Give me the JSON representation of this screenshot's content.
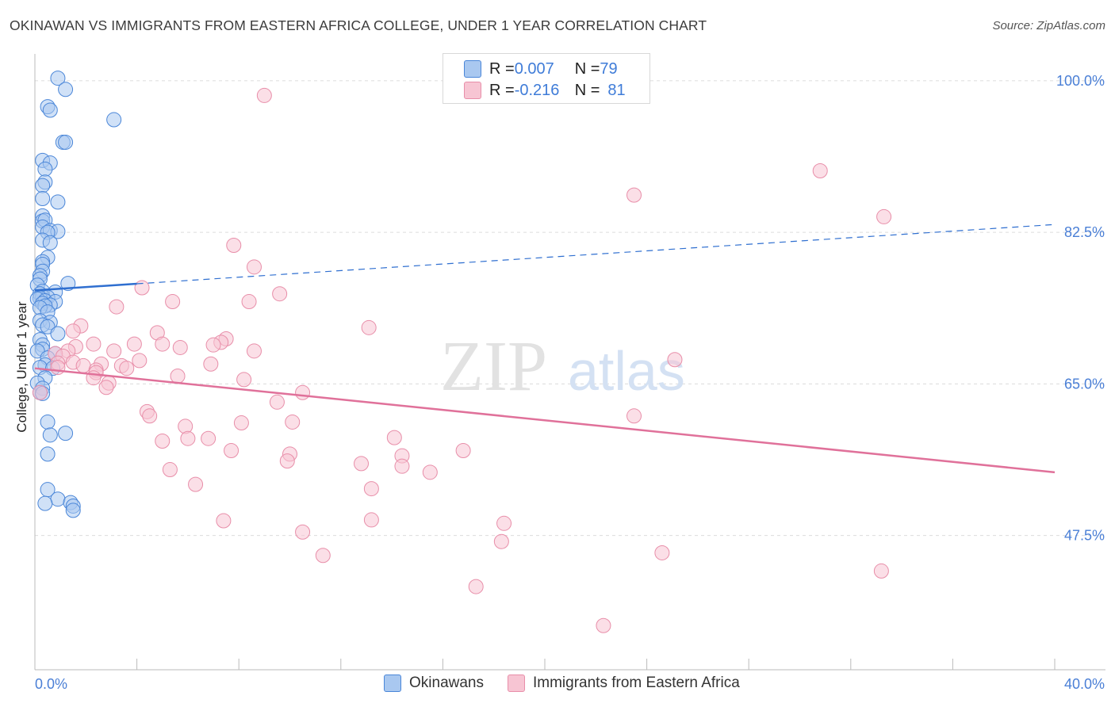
{
  "title": "OKINAWAN VS IMMIGRANTS FROM EASTERN AFRICA COLLEGE, UNDER 1 YEAR CORRELATION CHART",
  "source": "Source: ZipAtlas.com",
  "watermark": {
    "zip": "ZIP",
    "atlas": "atlas"
  },
  "legend_top": {
    "rows": [
      {
        "r_label": "R = ",
        "r_value": "0.007",
        "n_label": "N = ",
        "n_value": "79",
        "color": "#a9c8f0"
      },
      {
        "r_label": "R = ",
        "r_value": "-0.216",
        "n_label": "N = ",
        "n_value": "81",
        "color": "#f5b9cb"
      }
    ]
  },
  "legend_bottom": [
    "Okinawans",
    "Immigrants from Eastern Africa"
  ],
  "colors": {
    "okinawan_fill": "#a9c8f0",
    "okinawan_stroke": "#4a86d8",
    "okinawan_line": "#2f6fd0",
    "africa_fill": "#f7c5d3",
    "africa_stroke": "#e88ea9",
    "africa_line": "#e0719a",
    "axis_label": "#4a7fd6",
    "grid": "#dcdcdc"
  },
  "chart_data": {
    "type": "scatter",
    "title": "OKINAWAN VS IMMIGRANTS FROM EASTERN AFRICA COLLEGE, UNDER 1 YEAR CORRELATION CHART",
    "xlabel": "",
    "ylabel": "College, Under 1 year",
    "xlim": [
      0,
      40
    ],
    "ylim": [
      32.0,
      102.0
    ],
    "x_tick_labels": [
      "0.0%",
      "40.0%"
    ],
    "y_tick_labels": [
      "100.0%",
      "82.5%",
      "65.0%",
      "47.5%"
    ],
    "y_ticks": [
      100.0,
      82.5,
      65.0,
      47.5
    ],
    "grid": true,
    "legend": "top-center",
    "series": [
      {
        "name": "Okinawans",
        "points": [
          [
            0.9,
            100.3
          ],
          [
            1.2,
            99.0
          ],
          [
            0.5,
            97.0
          ],
          [
            0.6,
            96.6
          ],
          [
            3.1,
            95.5
          ],
          [
            1.1,
            92.9
          ],
          [
            1.2,
            92.9
          ],
          [
            0.3,
            90.8
          ],
          [
            0.6,
            90.5
          ],
          [
            0.4,
            89.8
          ],
          [
            0.4,
            88.3
          ],
          [
            0.3,
            87.9
          ],
          [
            0.9,
            86.0
          ],
          [
            0.3,
            86.4
          ],
          [
            0.3,
            84.4
          ],
          [
            0.3,
            83.8
          ],
          [
            0.4,
            83.9
          ],
          [
            0.3,
            83.1
          ],
          [
            0.6,
            82.7
          ],
          [
            0.9,
            82.6
          ],
          [
            0.5,
            82.5
          ],
          [
            0.3,
            81.6
          ],
          [
            0.6,
            81.3
          ],
          [
            0.5,
            79.6
          ],
          [
            0.3,
            79.1
          ],
          [
            0.3,
            78.8
          ],
          [
            0.3,
            78.0
          ],
          [
            0.2,
            77.5
          ],
          [
            0.2,
            77.1
          ],
          [
            1.3,
            76.6
          ],
          [
            0.1,
            76.4
          ],
          [
            0.3,
            75.7
          ],
          [
            0.8,
            75.6
          ],
          [
            0.2,
            75.4
          ],
          [
            0.3,
            75.1
          ],
          [
            0.5,
            75.0
          ],
          [
            0.2,
            74.9
          ],
          [
            0.1,
            74.8
          ],
          [
            0.4,
            74.6
          ],
          [
            0.8,
            74.5
          ],
          [
            0.3,
            74.3
          ],
          [
            0.6,
            74.1
          ],
          [
            0.4,
            74.0
          ],
          [
            0.2,
            73.8
          ],
          [
            0.5,
            73.3
          ],
          [
            0.2,
            72.3
          ],
          [
            0.6,
            72.1
          ],
          [
            0.3,
            71.8
          ],
          [
            0.5,
            71.6
          ],
          [
            0.9,
            70.8
          ],
          [
            0.2,
            70.1
          ],
          [
            0.3,
            69.5
          ],
          [
            0.3,
            69.0
          ],
          [
            0.1,
            68.8
          ],
          [
            0.8,
            68.5
          ],
          [
            0.5,
            68.0
          ],
          [
            0.4,
            67.2
          ],
          [
            0.2,
            66.9
          ],
          [
            0.7,
            66.8
          ],
          [
            0.4,
            65.7
          ],
          [
            0.1,
            65.1
          ],
          [
            0.3,
            64.5
          ],
          [
            0.2,
            64.0
          ],
          [
            0.5,
            60.6
          ],
          [
            0.6,
            59.1
          ],
          [
            1.2,
            59.3
          ],
          [
            0.5,
            56.9
          ],
          [
            0.5,
            52.8
          ],
          [
            0.9,
            51.7
          ],
          [
            1.4,
            51.3
          ],
          [
            0.4,
            51.2
          ],
          [
            1.5,
            50.9
          ],
          [
            1.5,
            50.4
          ],
          [
            0.3,
            63.9
          ]
        ]
      },
      {
        "name": "Immigrants from Eastern Africa",
        "points": [
          [
            9.0,
            98.3
          ],
          [
            30.8,
            89.6
          ],
          [
            23.5,
            86.8
          ],
          [
            33.3,
            84.3
          ],
          [
            7.8,
            81.0
          ],
          [
            8.6,
            78.5
          ],
          [
            4.2,
            76.1
          ],
          [
            9.6,
            75.4
          ],
          [
            5.4,
            74.5
          ],
          [
            8.4,
            74.5
          ],
          [
            3.2,
            73.9
          ],
          [
            13.1,
            71.5
          ],
          [
            1.8,
            71.7
          ],
          [
            1.5,
            71.1
          ],
          [
            4.8,
            70.9
          ],
          [
            7.5,
            70.2
          ],
          [
            7.3,
            69.8
          ],
          [
            2.3,
            69.6
          ],
          [
            3.9,
            69.6
          ],
          [
            5.0,
            69.6
          ],
          [
            7.0,
            69.5
          ],
          [
            1.6,
            69.3
          ],
          [
            3.1,
            68.8
          ],
          [
            5.7,
            69.2
          ],
          [
            1.3,
            68.8
          ],
          [
            8.6,
            68.8
          ],
          [
            0.8,
            68.5
          ],
          [
            1.1,
            68.2
          ],
          [
            4.1,
            67.7
          ],
          [
            1.5,
            67.5
          ],
          [
            25.1,
            67.8
          ],
          [
            0.9,
            67.4
          ],
          [
            2.6,
            67.3
          ],
          [
            6.9,
            67.3
          ],
          [
            1.9,
            67.1
          ],
          [
            3.4,
            67.1
          ],
          [
            3.6,
            66.8
          ],
          [
            0.9,
            66.9
          ],
          [
            2.4,
            66.6
          ],
          [
            2.4,
            66.3
          ],
          [
            5.6,
            65.9
          ],
          [
            2.3,
            65.7
          ],
          [
            8.2,
            65.5
          ],
          [
            2.9,
            65.1
          ],
          [
            2.8,
            64.6
          ],
          [
            10.5,
            64.0
          ],
          [
            9.5,
            62.9
          ],
          [
            4.4,
            61.8
          ],
          [
            4.5,
            61.3
          ],
          [
            23.5,
            61.3
          ],
          [
            10.1,
            60.6
          ],
          [
            8.1,
            60.5
          ],
          [
            5.9,
            60.1
          ],
          [
            14.1,
            58.8
          ],
          [
            5.0,
            58.4
          ],
          [
            6.8,
            58.7
          ],
          [
            6.0,
            58.7
          ],
          [
            7.7,
            57.3
          ],
          [
            10.0,
            56.9
          ],
          [
            16.8,
            57.3
          ],
          [
            14.4,
            56.7
          ],
          [
            9.9,
            56.1
          ],
          [
            12.8,
            55.8
          ],
          [
            14.4,
            55.5
          ],
          [
            5.3,
            55.1
          ],
          [
            15.5,
            54.8
          ],
          [
            6.3,
            53.4
          ],
          [
            13.2,
            52.9
          ],
          [
            7.4,
            49.2
          ],
          [
            13.2,
            49.3
          ],
          [
            18.4,
            48.9
          ],
          [
            10.5,
            47.9
          ],
          [
            18.3,
            46.8
          ],
          [
            11.3,
            45.2
          ],
          [
            24.6,
            45.5
          ],
          [
            33.2,
            43.4
          ],
          [
            17.3,
            41.6
          ],
          [
            22.3,
            37.1
          ],
          [
            0.2,
            64.0
          ]
        ]
      }
    ],
    "trend_lines": [
      {
        "series": "Okinawans",
        "x": [
          0,
          40
        ],
        "y": [
          75.8,
          83.4
        ],
        "solid_until": 4.0
      },
      {
        "series": "Immigrants from Eastern Africa",
        "x": [
          0,
          40
        ],
        "y": [
          66.8,
          54.8
        ]
      }
    ]
  }
}
